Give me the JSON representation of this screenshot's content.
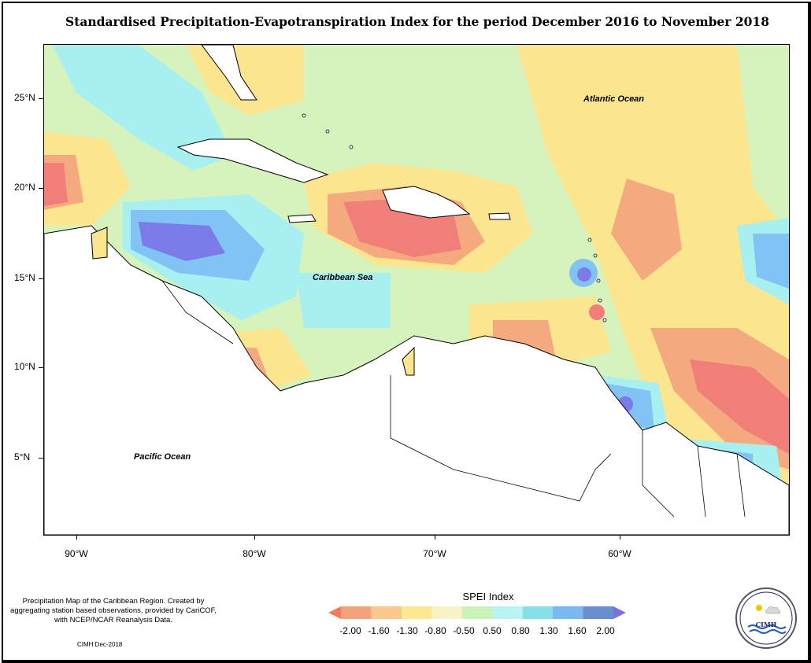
{
  "title": "Standardised Precipitation-Evapotranspiration Index for the period December 2016 to November 2018",
  "axes": {
    "lat_labels": [
      "25°N",
      "20°N",
      "15°N",
      "10°N",
      "5°N"
    ],
    "lon_labels": [
      "90°W",
      "80°W",
      "70°W",
      "60°W"
    ]
  },
  "map_labels": {
    "atlantic": "Atlantic Ocean",
    "caribbean": "Caribbean Sea",
    "pacific": "Pacific Ocean"
  },
  "note": "Precipitation Map of the Caribbean Region. Created by aggregating station based observations, provided by CariCOF, with NCEP/NCAR Reanalysis Data.",
  "credit": "CIMH Dec-2018",
  "legend": {
    "title": "SPEI Index",
    "labels": [
      "-2.00",
      "-1.60",
      "-1.30",
      "-0.80",
      "-0.50",
      "0.50",
      "0.80",
      "1.30",
      "1.60",
      "2.00"
    ],
    "colors": [
      "#f47a5c",
      "#f4a27c",
      "#f8c88c",
      "#fbe88f",
      "#f7f3c7",
      "#c9f3b9",
      "#b8f5f2",
      "#85e0e8",
      "#7bb8f2",
      "#6a8fd0",
      "#7f6ee0"
    ]
  },
  "logo": {
    "text": "CIMH"
  },
  "colors": {
    "dry_strong": "#f07f7a",
    "dry": "#f5a97f",
    "dry_mild": "#fbe58e",
    "neutral": "#d7f3bd",
    "wet_mild": "#a7f0ef",
    "wet": "#82c3f5",
    "wet_strong": "#7a7ae8"
  }
}
